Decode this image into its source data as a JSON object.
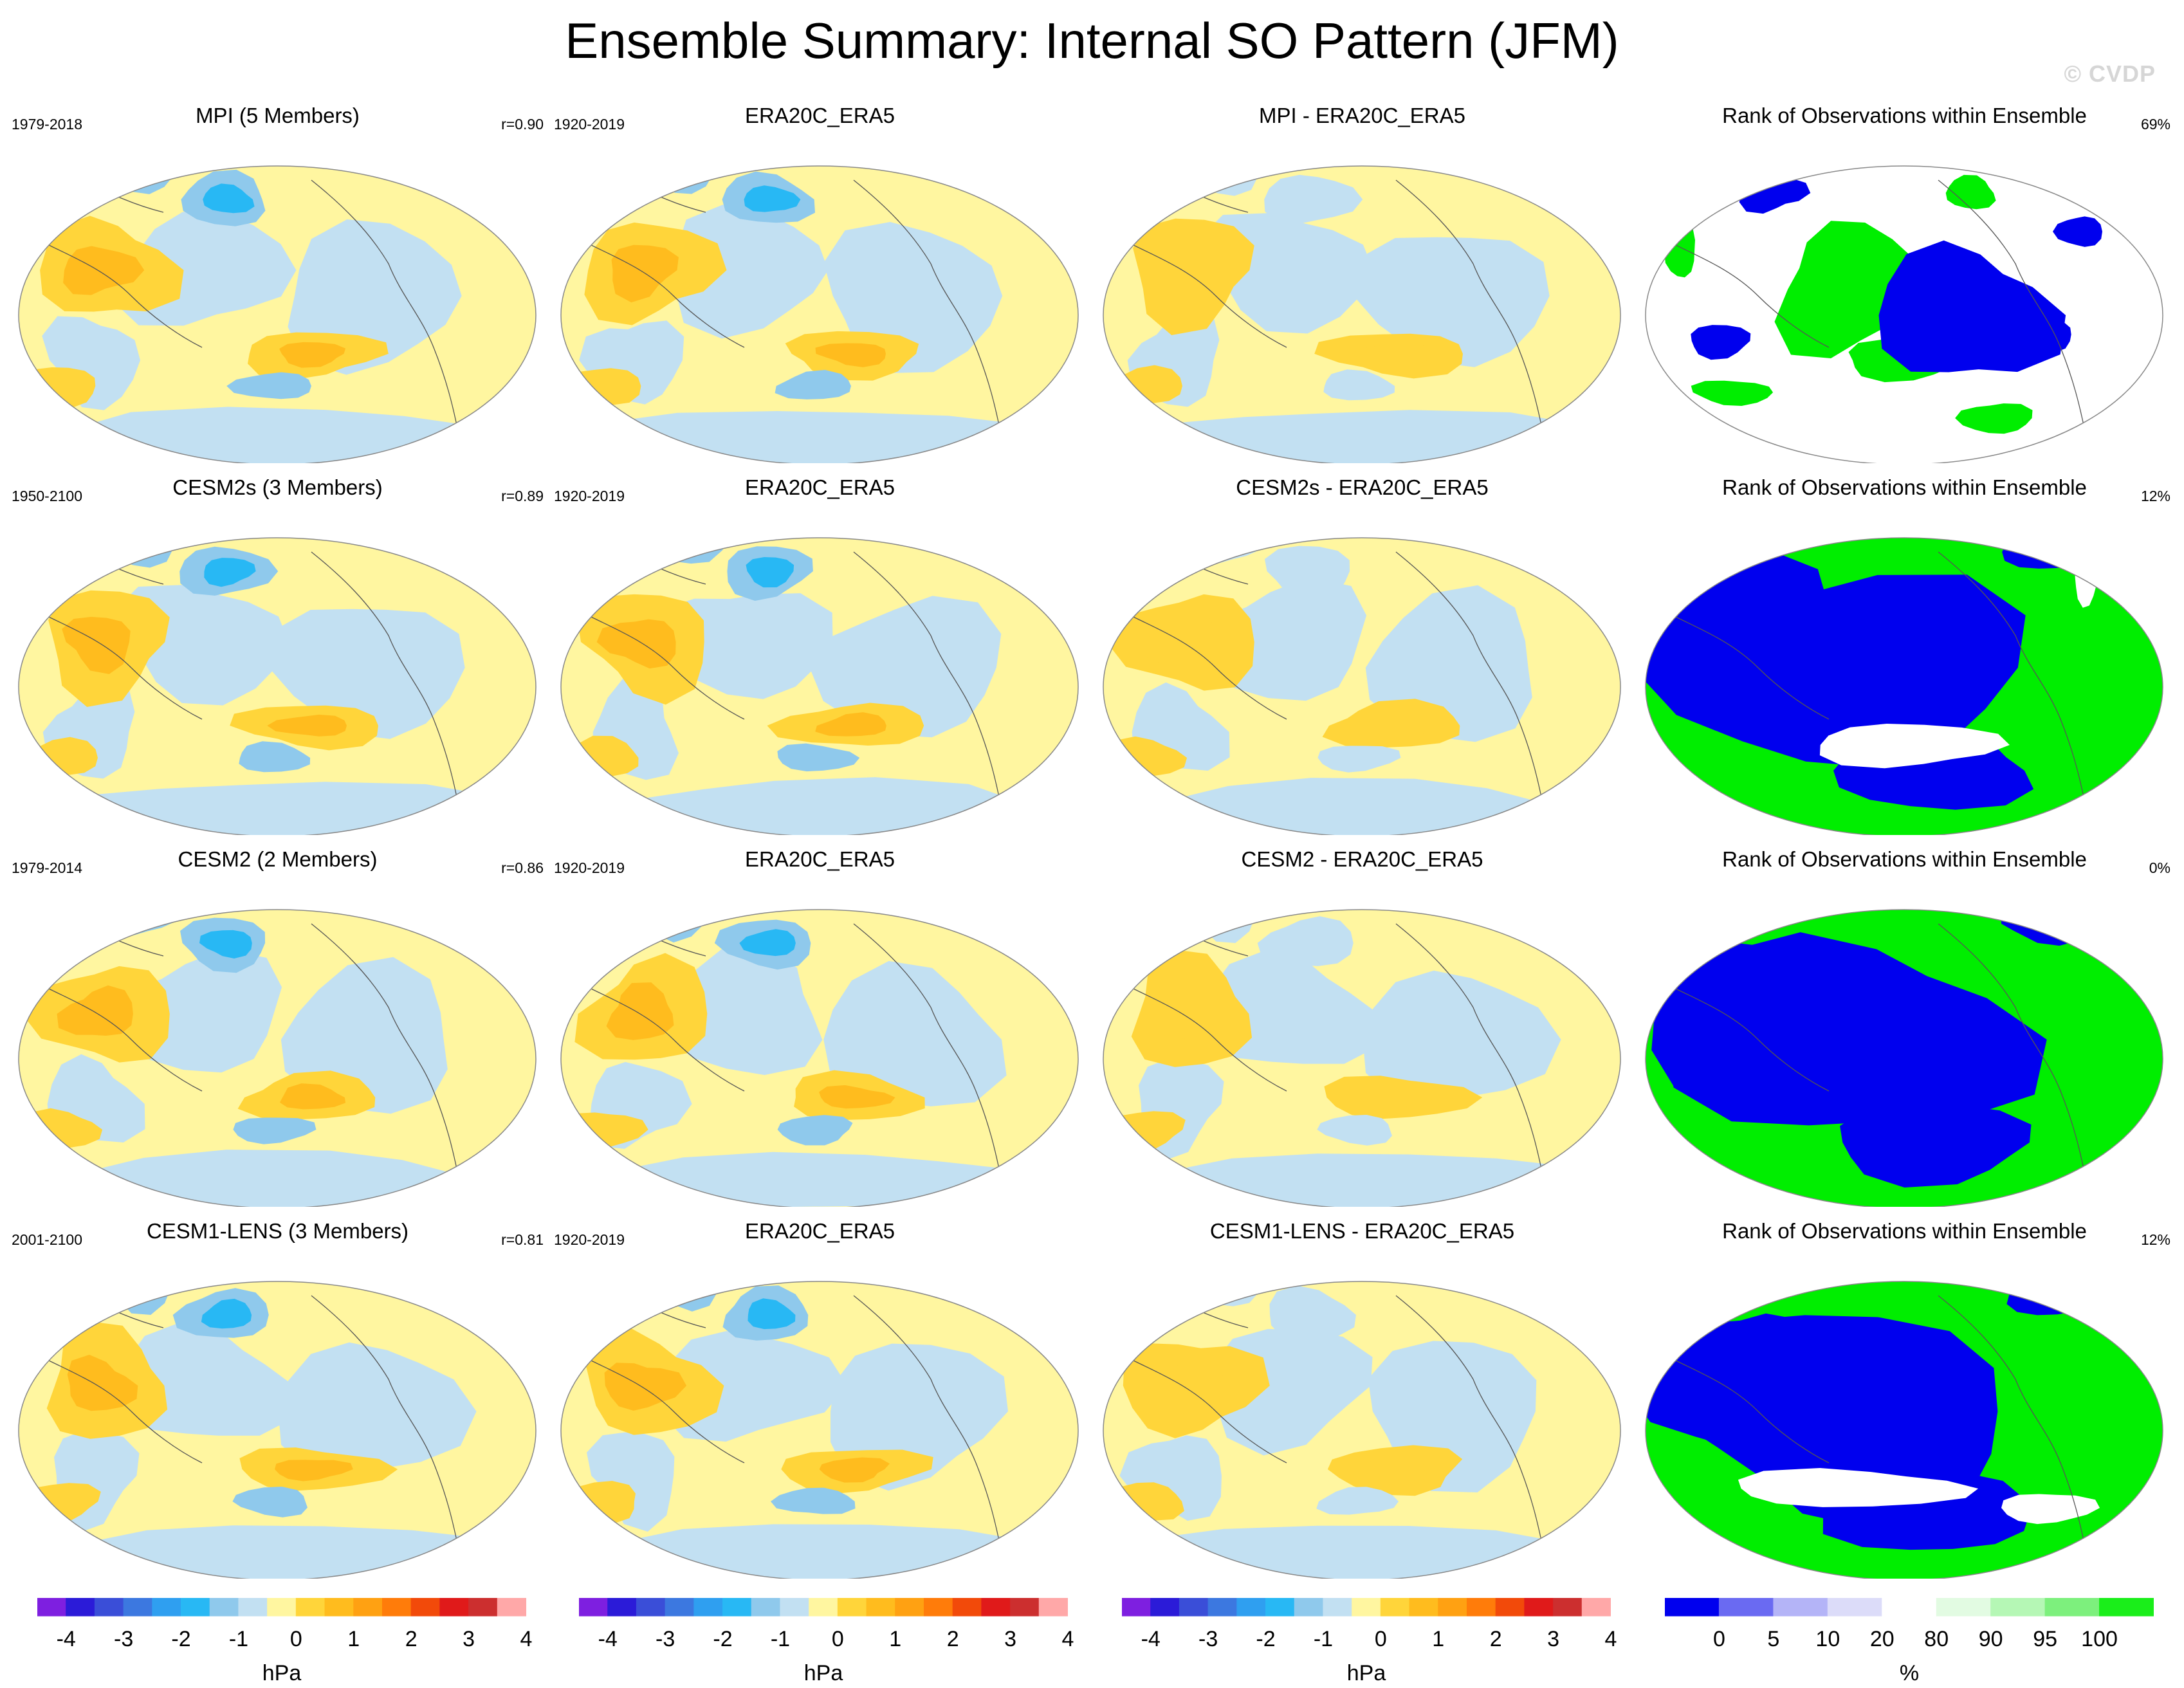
{
  "title": "Ensemble Summary: Internal SO Pattern (JFM)",
  "watermark": "© CVDP",
  "rows": [
    {
      "model": {
        "title": "MPI (5 Members)",
        "period": "1979-2018",
        "r": "r=0.90"
      },
      "obs": {
        "title": "ERA20C_ERA5",
        "period": "1920-2019"
      },
      "diff": {
        "title": "MPI - ERA20C_ERA5"
      },
      "rank": {
        "title": "Rank of Observations within Ensemble",
        "pct": "69%"
      }
    },
    {
      "model": {
        "title": "CESM2s (3 Members)",
        "period": "1950-2100",
        "r": "r=0.89"
      },
      "obs": {
        "title": "ERA20C_ERA5",
        "period": "1920-2019"
      },
      "diff": {
        "title": "CESM2s - ERA20C_ERA5"
      },
      "rank": {
        "title": "Rank of Observations within Ensemble",
        "pct": "12%"
      }
    },
    {
      "model": {
        "title": "CESM2 (2 Members)",
        "period": "1979-2014",
        "r": "r=0.86"
      },
      "obs": {
        "title": "ERA20C_ERA5",
        "period": "1920-2019"
      },
      "diff": {
        "title": "CESM2 - ERA20C_ERA5"
      },
      "rank": {
        "title": "Rank of Observations within Ensemble",
        "pct": "0%"
      }
    },
    {
      "model": {
        "title": "CESM1-LENS (3 Members)",
        "period": "2001-2100",
        "r": "r=0.81"
      },
      "obs": {
        "title": "ERA20C_ERA5",
        "period": "1920-2019"
      },
      "diff": {
        "title": "CESM1-LENS - ERA20C_ERA5"
      },
      "rank": {
        "title": "Rank of Observations within Ensemble",
        "pct": "12%"
      }
    }
  ],
  "colorbars": {
    "pressure": {
      "units": "hPa",
      "colors": [
        "#7e1fe0",
        "#2b1bd8",
        "#3a4ed8",
        "#3c78e0",
        "#2f9ff0",
        "#28b8f4",
        "#8fc9ec",
        "#c2e0f2",
        "#fff6a0",
        "#ffd53a",
        "#ffbc1e",
        "#ffa112",
        "#ff7c0a",
        "#f24a0a",
        "#e01a1a",
        "#cc2f2f",
        "#ffa8a8"
      ],
      "ticks": [
        "-4",
        "-3",
        "-2",
        "-1",
        "0",
        "1",
        "2",
        "3",
        "4"
      ]
    },
    "rank": {
      "units": "%",
      "colors": [
        "#0000ee",
        "#6a6af2",
        "#b4b4f7",
        "#dcdcf9",
        "#ffffff",
        "#e2fbe2",
        "#b5f7b5",
        "#7df07d",
        "#1aee1a"
      ],
      "ticks": [
        "0",
        "5",
        "10",
        "20",
        "80",
        "90",
        "95",
        "100"
      ]
    }
  },
  "palette": {
    "land_outline": "#555555",
    "rank_low": "#0000ee",
    "rank_high": "#00ee00"
  }
}
